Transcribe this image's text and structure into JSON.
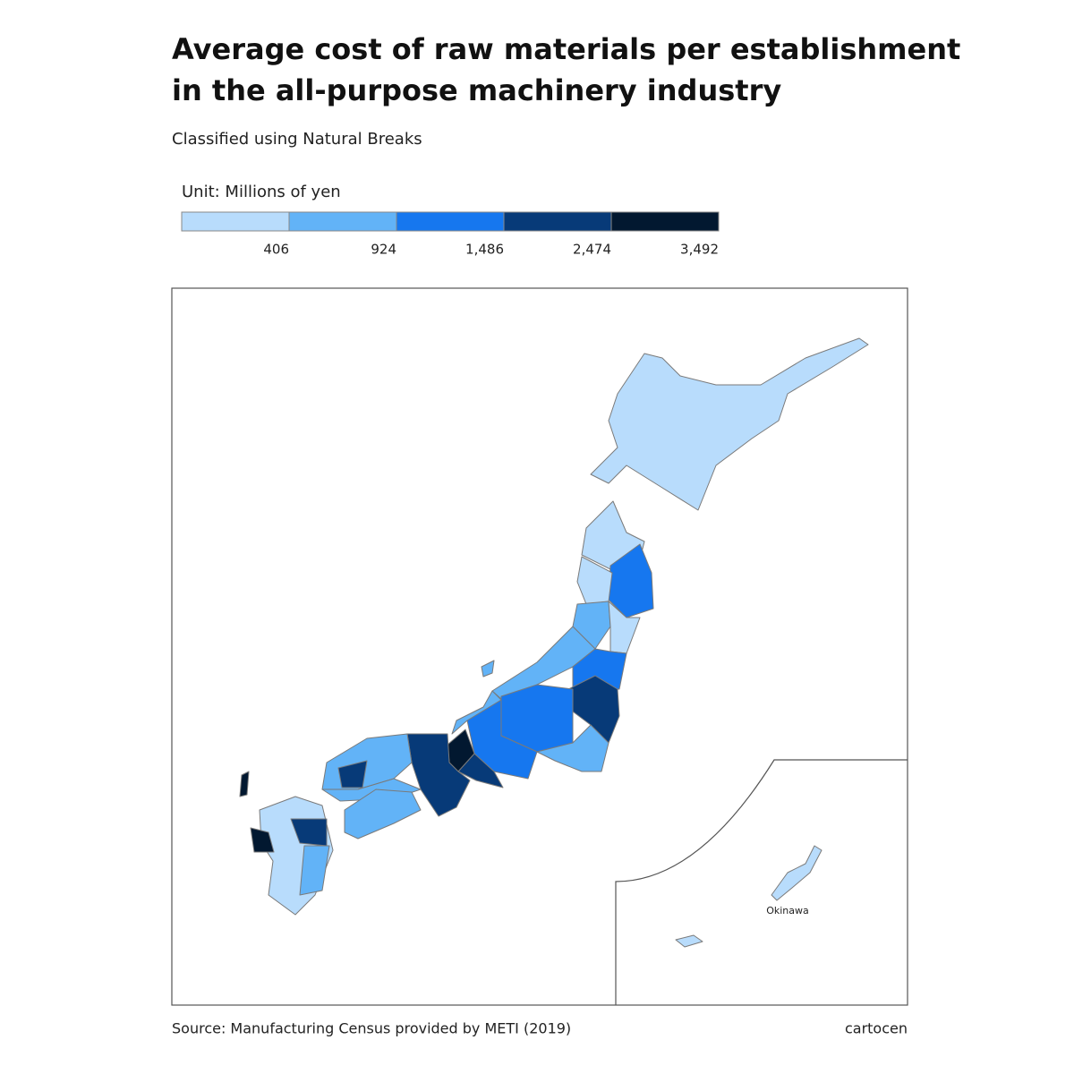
{
  "title": [
    "Average cost of raw materials per establishment",
    "in the all-purpose machinery industry"
  ],
  "subtitle": "Classified using Natural Breaks",
  "legend": {
    "title": "Unit: Millions of yen",
    "breaks": [
      406,
      924,
      {
        "value": 1486,
        "label": "1,486"
      },
      {
        "value": 2474,
        "label": "2,474"
      },
      {
        "value": 3492,
        "label": "3,492"
      }
    ],
    "colors": [
      "#b8dcfc",
      "#62b3f7",
      "#1677ef",
      "#073a78",
      "#021830"
    ]
  },
  "inset_label": "Okinawa",
  "source": "Source: Manufacturing Census provided by METI (2019)",
  "credit": "cartocen"
}
